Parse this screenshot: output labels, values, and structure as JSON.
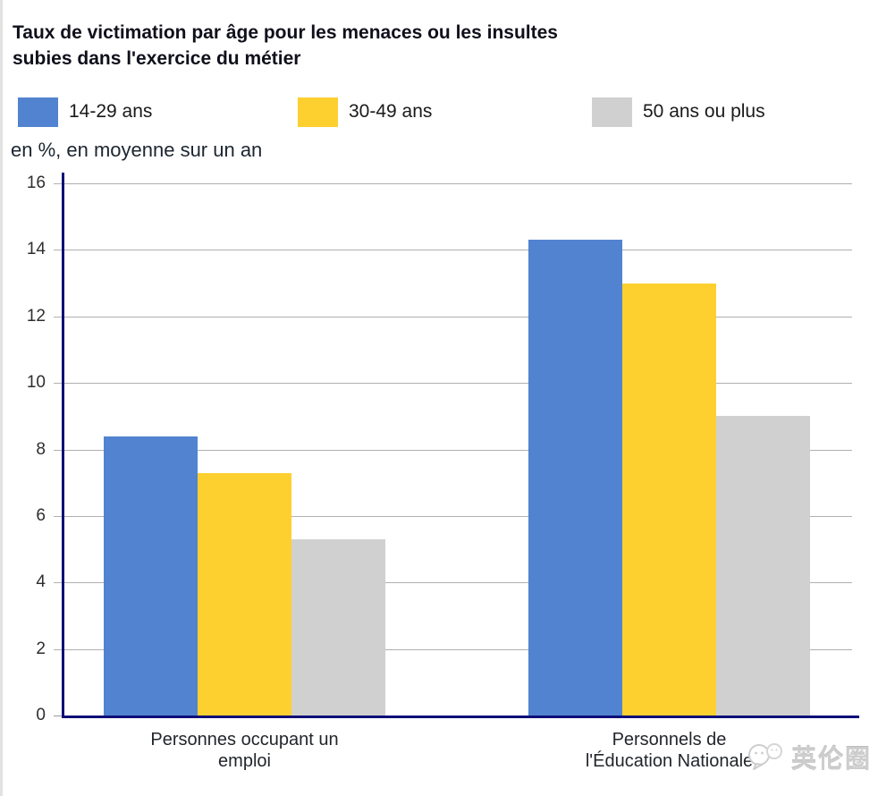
{
  "header": {
    "title_line1": "Taux de victimation par âge pour les menaces ou les insultes",
    "title_line2": "subies dans l'exercice du métier"
  },
  "subtitle": "en %, en moyenne sur un an",
  "legend": {
    "position": "top",
    "items": [
      {
        "label": "14-29 ans",
        "color": "#5183d0"
      },
      {
        "label": "30-49 ans",
        "color": "#fdd02f"
      },
      {
        "label": "50 ans ou plus",
        "color": "#d0d0d0"
      }
    ]
  },
  "chart_data": {
    "type": "bar",
    "title": "Taux de victimation par âge pour les menaces ou les insultes subies dans l'exercice du métier",
    "subtitle": "en %, en moyenne sur un an",
    "unit": "%",
    "categories": [
      "Personnes occupant un emploi",
      "Personnels de l'Éducation Nationale"
    ],
    "series": [
      {
        "name": "14-29 ans",
        "color": "#5183d0",
        "values": [
          8.4,
          14.3
        ]
      },
      {
        "name": "30-49 ans",
        "color": "#fdd02f",
        "values": [
          7.3,
          13.0
        ]
      },
      {
        "name": "50 ans ou plus",
        "color": "#d0d0d0",
        "values": [
          5.3,
          9.0
        ]
      }
    ],
    "ylim": [
      0,
      16
    ],
    "ytick_step": 2,
    "grid": true,
    "legend_position": "top",
    "axis_color": "#0e0e78",
    "grid_color": "#b0b0b0"
  },
  "watermark": {
    "text": "英伦圈",
    "icon": "chat-bubbles-logo-icon"
  }
}
